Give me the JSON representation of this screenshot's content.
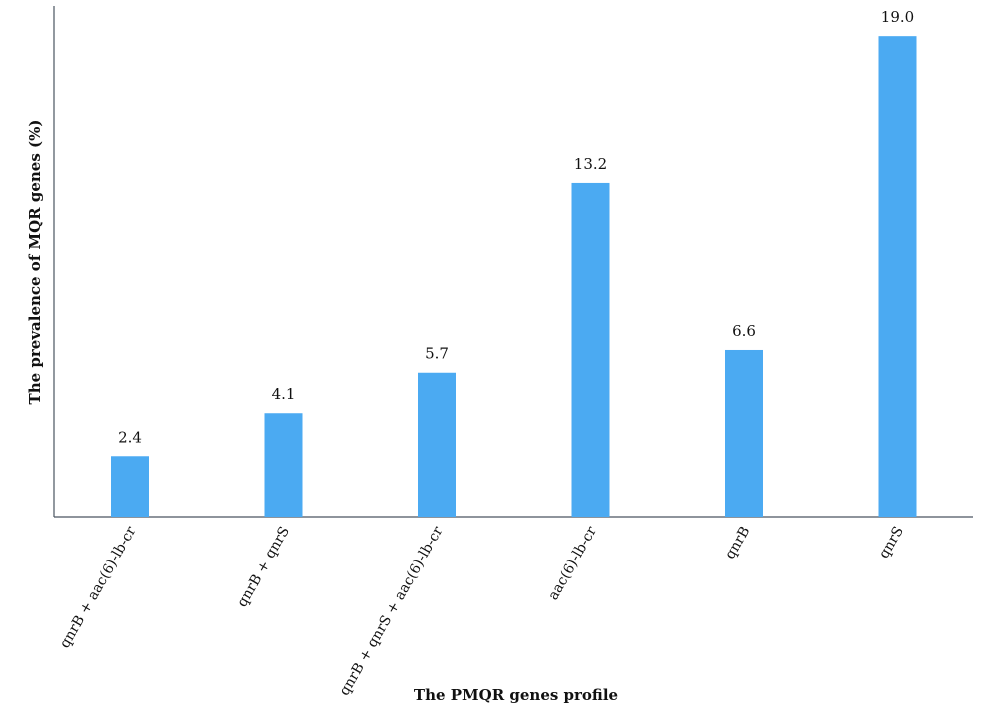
{
  "chart_data": {
    "type": "bar",
    "title": "",
    "xlabel": "The PMQR genes profile",
    "ylabel": "The prevalence of MQR genes (%)",
    "categories": [
      "qnrB + aac(6)-lb-cr",
      "qnrB + qnrS",
      "qnrB + qnrS + aac(6)-lb-cr",
      "aac(6)-lb-cr",
      "qnrB",
      "qnrS"
    ],
    "values": [
      2.4,
      4.1,
      5.7,
      13.2,
      6.6,
      19.0
    ],
    "value_labels": [
      "2.4",
      "4.1",
      "5.7",
      "13.2",
      "6.6",
      "19.0"
    ],
    "ylim": [
      0,
      20
    ],
    "grid": false,
    "legend": "none",
    "colors": {
      "bar": "#4baaf2",
      "axis": "#4a5560"
    }
  }
}
